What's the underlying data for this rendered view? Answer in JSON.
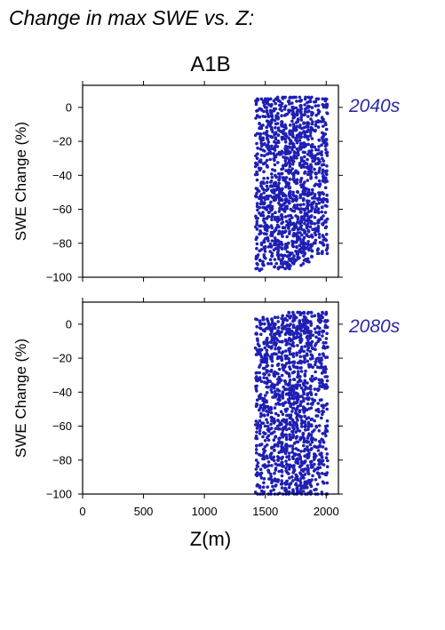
{
  "figure": {
    "title": "Change in max SWE vs. Z:",
    "scenario": "A1B",
    "colors": {
      "points": "#1f1fb4",
      "period_label": "#2a2aa8",
      "axis": "#000000",
      "background": "#ffffff"
    }
  },
  "chart_data": [
    {
      "type": "scatter",
      "title": "",
      "period": "2040s",
      "ylabel": "SWE Change (%)",
      "xlabel": "",
      "xlim": [
        0,
        2100
      ],
      "ylim": [
        -100,
        13
      ],
      "xticks": [
        0,
        500,
        1000,
        1500,
        2000
      ],
      "yticks": [
        0,
        -20,
        -40,
        -60,
        -80,
        -100
      ],
      "ytick_labels": [
        "0",
        "−20",
        "−40",
        "−60",
        "−80",
        "−100"
      ],
      "show_x_tick_labels": false,
      "grid": false,
      "elevation_columns": [
        1430,
        1460,
        1490,
        1520,
        1550,
        1580,
        1610,
        1640,
        1670,
        1700,
        1730,
        1760,
        1790,
        1820,
        1850,
        1880,
        1910,
        1940,
        1970,
        2000
      ],
      "y_max_per_column": [
        5,
        5,
        5,
        5,
        5,
        5,
        6,
        6,
        6,
        6,
        6,
        6,
        6,
        6,
        6,
        6,
        5,
        5,
        5,
        5
      ],
      "y_min_per_column": [
        -95,
        -96,
        -93,
        -92,
        -92,
        -94,
        -95,
        -94,
        -95,
        -95,
        -92,
        -90,
        -93,
        -92,
        -91,
        -88,
        -80,
        -86,
        -86,
        -86
      ],
      "points_per_column": [
        60,
        62,
        66,
        70,
        72,
        72,
        76,
        78,
        80,
        84,
        86,
        86,
        84,
        82,
        80,
        70,
        44,
        58,
        58,
        56
      ]
    },
    {
      "type": "scatter",
      "title": "",
      "period": "2080s",
      "ylabel": "SWE Change (%)",
      "xlabel": "Z(m)",
      "xlim": [
        0,
        2100
      ],
      "ylim": [
        -100,
        13
      ],
      "xticks": [
        0,
        500,
        1000,
        1500,
        2000
      ],
      "xtick_labels": [
        "0",
        "500",
        "1000",
        "1500",
        "2000"
      ],
      "yticks": [
        0,
        -20,
        -40,
        -60,
        -80,
        -100
      ],
      "ytick_labels": [
        "0",
        "−20",
        "−40",
        "−60",
        "−80",
        "−100"
      ],
      "show_x_tick_labels": true,
      "grid": false,
      "elevation_columns": [
        1430,
        1460,
        1490,
        1520,
        1550,
        1580,
        1610,
        1640,
        1670,
        1700,
        1730,
        1760,
        1790,
        1820,
        1850,
        1880,
        1910,
        1940,
        1970,
        2000
      ],
      "y_max_per_column": [
        3,
        2,
        4,
        3,
        3,
        4,
        4,
        5,
        5,
        7,
        7,
        7,
        7,
        7,
        7,
        7,
        5,
        6,
        7,
        7
      ],
      "y_min_per_column": [
        -100,
        -100,
        -100,
        -100,
        -100,
        -100,
        -100,
        -100,
        -100,
        -100,
        -100,
        -100,
        -100,
        -100,
        -100,
        -100,
        -100,
        -100,
        -100,
        -100
      ],
      "points_per_column": [
        56,
        58,
        64,
        68,
        70,
        70,
        74,
        78,
        80,
        86,
        88,
        90,
        88,
        86,
        82,
        70,
        42,
        56,
        56,
        54
      ]
    }
  ]
}
